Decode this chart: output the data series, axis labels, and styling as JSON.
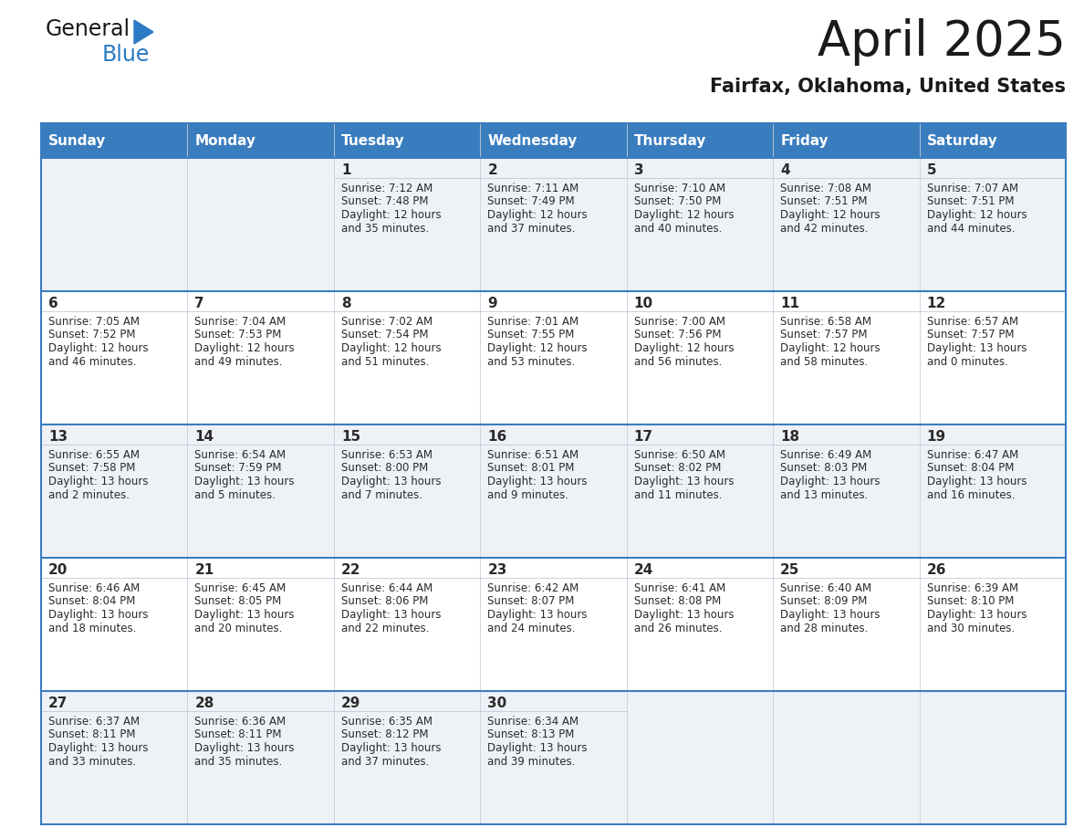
{
  "title": "April 2025",
  "subtitle": "Fairfax, Oklahoma, United States",
  "header_bg_color": "#3a7dbf",
  "header_text_color": "#ffffff",
  "header_days": [
    "Sunday",
    "Monday",
    "Tuesday",
    "Wednesday",
    "Thursday",
    "Friday",
    "Saturday"
  ],
  "row_bg_light": "#eef2f7",
  "row_bg_white": "#ffffff",
  "border_color": "#3a7dbf",
  "separator_color": "#c0c8d8",
  "text_color": "#2a2a2a",
  "logo_black": "#1a1a1a",
  "logo_blue": "#2b7bc4",
  "calendar_data": [
    [
      {
        "day": "",
        "sunrise": "",
        "sunset": "",
        "daylight1": "",
        "daylight2": ""
      },
      {
        "day": "",
        "sunrise": "",
        "sunset": "",
        "daylight1": "",
        "daylight2": ""
      },
      {
        "day": "1",
        "sunrise": "Sunrise: 7:12 AM",
        "sunset": "Sunset: 7:48 PM",
        "daylight1": "Daylight: 12 hours",
        "daylight2": "and 35 minutes."
      },
      {
        "day": "2",
        "sunrise": "Sunrise: 7:11 AM",
        "sunset": "Sunset: 7:49 PM",
        "daylight1": "Daylight: 12 hours",
        "daylight2": "and 37 minutes."
      },
      {
        "day": "3",
        "sunrise": "Sunrise: 7:10 AM",
        "sunset": "Sunset: 7:50 PM",
        "daylight1": "Daylight: 12 hours",
        "daylight2": "and 40 minutes."
      },
      {
        "day": "4",
        "sunrise": "Sunrise: 7:08 AM",
        "sunset": "Sunset: 7:51 PM",
        "daylight1": "Daylight: 12 hours",
        "daylight2": "and 42 minutes."
      },
      {
        "day": "5",
        "sunrise": "Sunrise: 7:07 AM",
        "sunset": "Sunset: 7:51 PM",
        "daylight1": "Daylight: 12 hours",
        "daylight2": "and 44 minutes."
      }
    ],
    [
      {
        "day": "6",
        "sunrise": "Sunrise: 7:05 AM",
        "sunset": "Sunset: 7:52 PM",
        "daylight1": "Daylight: 12 hours",
        "daylight2": "and 46 minutes."
      },
      {
        "day": "7",
        "sunrise": "Sunrise: 7:04 AM",
        "sunset": "Sunset: 7:53 PM",
        "daylight1": "Daylight: 12 hours",
        "daylight2": "and 49 minutes."
      },
      {
        "day": "8",
        "sunrise": "Sunrise: 7:02 AM",
        "sunset": "Sunset: 7:54 PM",
        "daylight1": "Daylight: 12 hours",
        "daylight2": "and 51 minutes."
      },
      {
        "day": "9",
        "sunrise": "Sunrise: 7:01 AM",
        "sunset": "Sunset: 7:55 PM",
        "daylight1": "Daylight: 12 hours",
        "daylight2": "and 53 minutes."
      },
      {
        "day": "10",
        "sunrise": "Sunrise: 7:00 AM",
        "sunset": "Sunset: 7:56 PM",
        "daylight1": "Daylight: 12 hours",
        "daylight2": "and 56 minutes."
      },
      {
        "day": "11",
        "sunrise": "Sunrise: 6:58 AM",
        "sunset": "Sunset: 7:57 PM",
        "daylight1": "Daylight: 12 hours",
        "daylight2": "and 58 minutes."
      },
      {
        "day": "12",
        "sunrise": "Sunrise: 6:57 AM",
        "sunset": "Sunset: 7:57 PM",
        "daylight1": "Daylight: 13 hours",
        "daylight2": "and 0 minutes."
      }
    ],
    [
      {
        "day": "13",
        "sunrise": "Sunrise: 6:55 AM",
        "sunset": "Sunset: 7:58 PM",
        "daylight1": "Daylight: 13 hours",
        "daylight2": "and 2 minutes."
      },
      {
        "day": "14",
        "sunrise": "Sunrise: 6:54 AM",
        "sunset": "Sunset: 7:59 PM",
        "daylight1": "Daylight: 13 hours",
        "daylight2": "and 5 minutes."
      },
      {
        "day": "15",
        "sunrise": "Sunrise: 6:53 AM",
        "sunset": "Sunset: 8:00 PM",
        "daylight1": "Daylight: 13 hours",
        "daylight2": "and 7 minutes."
      },
      {
        "day": "16",
        "sunrise": "Sunrise: 6:51 AM",
        "sunset": "Sunset: 8:01 PM",
        "daylight1": "Daylight: 13 hours",
        "daylight2": "and 9 minutes."
      },
      {
        "day": "17",
        "sunrise": "Sunrise: 6:50 AM",
        "sunset": "Sunset: 8:02 PM",
        "daylight1": "Daylight: 13 hours",
        "daylight2": "and 11 minutes."
      },
      {
        "day": "18",
        "sunrise": "Sunrise: 6:49 AM",
        "sunset": "Sunset: 8:03 PM",
        "daylight1": "Daylight: 13 hours",
        "daylight2": "and 13 minutes."
      },
      {
        "day": "19",
        "sunrise": "Sunrise: 6:47 AM",
        "sunset": "Sunset: 8:04 PM",
        "daylight1": "Daylight: 13 hours",
        "daylight2": "and 16 minutes."
      }
    ],
    [
      {
        "day": "20",
        "sunrise": "Sunrise: 6:46 AM",
        "sunset": "Sunset: 8:04 PM",
        "daylight1": "Daylight: 13 hours",
        "daylight2": "and 18 minutes."
      },
      {
        "day": "21",
        "sunrise": "Sunrise: 6:45 AM",
        "sunset": "Sunset: 8:05 PM",
        "daylight1": "Daylight: 13 hours",
        "daylight2": "and 20 minutes."
      },
      {
        "day": "22",
        "sunrise": "Sunrise: 6:44 AM",
        "sunset": "Sunset: 8:06 PM",
        "daylight1": "Daylight: 13 hours",
        "daylight2": "and 22 minutes."
      },
      {
        "day": "23",
        "sunrise": "Sunrise: 6:42 AM",
        "sunset": "Sunset: 8:07 PM",
        "daylight1": "Daylight: 13 hours",
        "daylight2": "and 24 minutes."
      },
      {
        "day": "24",
        "sunrise": "Sunrise: 6:41 AM",
        "sunset": "Sunset: 8:08 PM",
        "daylight1": "Daylight: 13 hours",
        "daylight2": "and 26 minutes."
      },
      {
        "day": "25",
        "sunrise": "Sunrise: 6:40 AM",
        "sunset": "Sunset: 8:09 PM",
        "daylight1": "Daylight: 13 hours",
        "daylight2": "and 28 minutes."
      },
      {
        "day": "26",
        "sunrise": "Sunrise: 6:39 AM",
        "sunset": "Sunset: 8:10 PM",
        "daylight1": "Daylight: 13 hours",
        "daylight2": "and 30 minutes."
      }
    ],
    [
      {
        "day": "27",
        "sunrise": "Sunrise: 6:37 AM",
        "sunset": "Sunset: 8:11 PM",
        "daylight1": "Daylight: 13 hours",
        "daylight2": "and 33 minutes."
      },
      {
        "day": "28",
        "sunrise": "Sunrise: 6:36 AM",
        "sunset": "Sunset: 8:11 PM",
        "daylight1": "Daylight: 13 hours",
        "daylight2": "and 35 minutes."
      },
      {
        "day": "29",
        "sunrise": "Sunrise: 6:35 AM",
        "sunset": "Sunset: 8:12 PM",
        "daylight1": "Daylight: 13 hours",
        "daylight2": "and 37 minutes."
      },
      {
        "day": "30",
        "sunrise": "Sunrise: 6:34 AM",
        "sunset": "Sunset: 8:13 PM",
        "daylight1": "Daylight: 13 hours",
        "daylight2": "and 39 minutes."
      },
      {
        "day": "",
        "sunrise": "",
        "sunset": "",
        "daylight1": "",
        "daylight2": ""
      },
      {
        "day": "",
        "sunrise": "",
        "sunset": "",
        "daylight1": "",
        "daylight2": ""
      },
      {
        "day": "",
        "sunrise": "",
        "sunset": "",
        "daylight1": "",
        "daylight2": ""
      }
    ]
  ]
}
